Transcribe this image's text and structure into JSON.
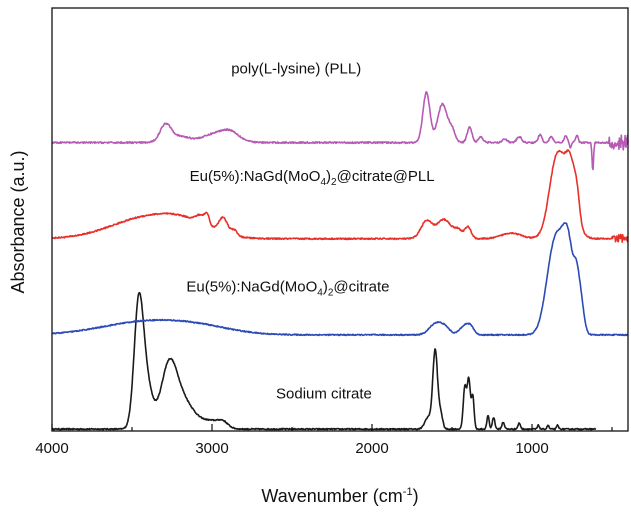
{
  "chart_data": {
    "type": "line",
    "title": "",
    "xlabel": "Wavenumber (cm",
    "xlabel_sup": "-1",
    "xlabel_close": ")",
    "ylabel": "Absorbance (a.u.)",
    "x_reversed": true,
    "xlim": [
      4000,
      400
    ],
    "ylim": [
      0,
      4.4
    ],
    "x_ticks": [
      4000,
      3000,
      2000,
      1000
    ],
    "y_ticks_shown": false,
    "grid": false,
    "series": [
      {
        "name": "Sodium citrate",
        "label_parts": {
          "main": "Sodium citrate",
          "sub": "",
          "tail": ""
        },
        "color": "#1a1a1a",
        "label_at": [
          2600,
          0.34
        ],
        "x_start": 4000,
        "x_end": 600,
        "baseline": 0.02,
        "noise": 0.006,
        "ripple": [],
        "peaks": [
          [
            3460,
            1.06,
            28
          ],
          [
            3420,
            0.55,
            40
          ],
          [
            3270,
            0.6,
            50
          ],
          [
            3180,
            0.28,
            70
          ],
          [
            3000,
            0.08,
            60
          ],
          [
            2930,
            0.05,
            30
          ],
          [
            1605,
            0.82,
            15
          ],
          [
            1650,
            0.12,
            20
          ],
          [
            1570,
            0.15,
            12
          ],
          [
            1420,
            0.43,
            10
          ],
          [
            1395,
            0.52,
            10
          ],
          [
            1370,
            0.34,
            8
          ],
          [
            1275,
            0.14,
            7
          ],
          [
            1240,
            0.12,
            8
          ],
          [
            1180,
            0.07,
            8
          ],
          [
            1080,
            0.06,
            8
          ],
          [
            960,
            0.04,
            6
          ],
          [
            900,
            0.04,
            6
          ],
          [
            840,
            0.04,
            6
          ]
        ]
      },
      {
        "name": "Eu(5%):NaGd(MoO4)2@citrate",
        "label_parts": {
          "main": "Eu(5%):NaGd(MoO",
          "sub": "4",
          "tail": ")",
          "sub2": "2",
          "tail2": "@citrate"
        },
        "color": "#2b4ab5",
        "label_at": [
          3160,
          1.45
        ],
        "x_start": 4000,
        "x_end": 400,
        "baseline": 1.0,
        "noise": 0.006,
        "ripple": [],
        "peaks": [
          [
            3400,
            0.14,
            280
          ],
          [
            3050,
            0.05,
            200
          ],
          [
            1600,
            0.12,
            40
          ],
          [
            1540,
            0.06,
            30
          ],
          [
            1420,
            0.1,
            30
          ],
          [
            1380,
            0.06,
            20
          ],
          [
            880,
            0.42,
            45
          ],
          [
            820,
            0.82,
            55
          ],
          [
            770,
            0.5,
            30
          ],
          [
            720,
            0.42,
            18
          ],
          [
            690,
            0.25,
            18
          ]
        ]
      },
      {
        "name": "Eu(5%):NaGd(MoO4)2@citrate@PLL",
        "label_parts": {
          "main": "Eu(5%):NaGd(MoO",
          "sub": "4",
          "tail": ")",
          "sub2": "2",
          "tail2": "@citrate@PLL"
        },
        "color": "#e8302a",
        "label_at": [
          3140,
          2.6
        ],
        "x_start": 4000,
        "x_end": 400,
        "baseline": 2.0,
        "noise": 0.007,
        "ripple": [
          [
            500,
            400,
            0.04
          ]
        ],
        "peaks": [
          [
            3400,
            0.22,
            230
          ],
          [
            3150,
            0.1,
            150
          ],
          [
            3070,
            0.08,
            30
          ],
          [
            3030,
            0.1,
            15
          ],
          [
            2930,
            0.16,
            28
          ],
          [
            2860,
            0.06,
            18
          ],
          [
            1660,
            0.18,
            35
          ],
          [
            1550,
            0.2,
            45
          ],
          [
            1460,
            0.08,
            25
          ],
          [
            1400,
            0.12,
            20
          ],
          [
            1130,
            0.06,
            60
          ],
          [
            860,
            0.32,
            40
          ],
          [
            810,
            0.7,
            60
          ],
          [
            760,
            0.35,
            25
          ],
          [
            720,
            0.28,
            18
          ]
        ]
      },
      {
        "name": "poly(L-lysine) (PLL)",
        "label_parts": {
          "main": "poly(L-lysine) (PLL)",
          "sub": "",
          "tail": ""
        },
        "color": "#b65ab4",
        "label_at": [
          2880,
          3.72
        ],
        "x_start": 4000,
        "x_end": 400,
        "baseline": 3.0,
        "noise": 0.008,
        "ripple": [
          [
            520,
            400,
            0.08
          ]
        ],
        "peaks": [
          [
            3290,
            0.18,
            35
          ],
          [
            3200,
            0.06,
            60
          ],
          [
            2960,
            0.1,
            90
          ],
          [
            2880,
            0.06,
            50
          ],
          [
            1660,
            0.52,
            22
          ],
          [
            1560,
            0.4,
            30
          ],
          [
            1500,
            0.12,
            20
          ],
          [
            1390,
            0.16,
            15
          ],
          [
            1320,
            0.06,
            15
          ],
          [
            1170,
            0.04,
            15
          ],
          [
            1080,
            0.06,
            15
          ],
          [
            950,
            0.08,
            12
          ],
          [
            880,
            0.06,
            12
          ],
          [
            790,
            0.07,
            10
          ],
          [
            760,
            -0.05,
            6
          ],
          [
            720,
            0.08,
            8
          ],
          [
            620,
            -0.28,
            5
          ]
        ]
      }
    ]
  }
}
